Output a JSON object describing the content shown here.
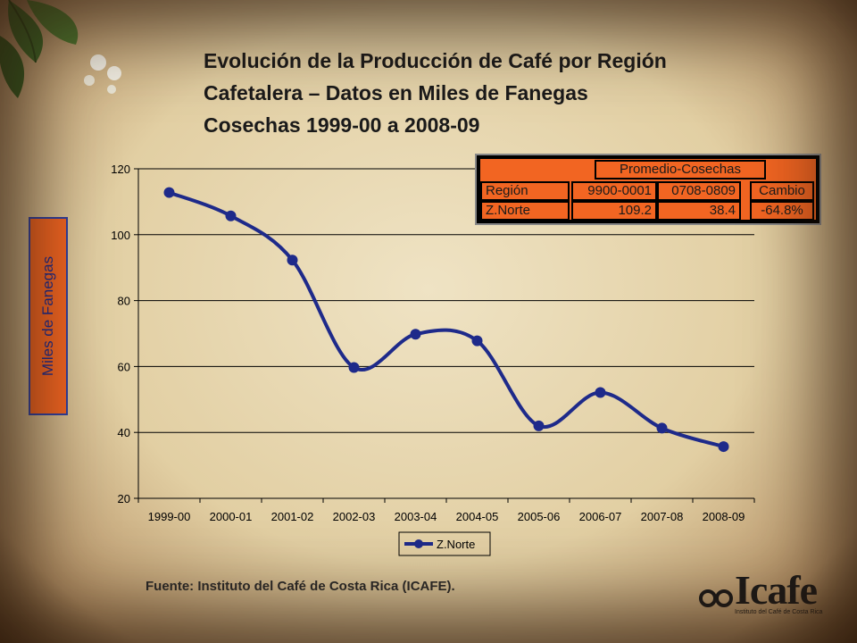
{
  "slide": {
    "title_lines": [
      "Evolución de la Producción de Café por Región",
      "Cafetalera – Datos en Miles de Fanegas",
      "Cosechas 1999-00 a 2008-09"
    ],
    "source": "Fuente: Instituto del Café de Costa Rica (ICAFE).",
    "logo": {
      "name": "Icafe",
      "subtitle": "Instituto del Café de Costa Rica"
    }
  },
  "summary_table": {
    "group_header": "Promedio-Cosechas",
    "headers": [
      "Región",
      "9900-0001",
      "0708-0809",
      "Cambio"
    ],
    "row": [
      "Z.Norte",
      "109.2",
      "38.4",
      "-64.8%"
    ]
  },
  "chart_data": {
    "type": "line",
    "ylabel": "Miles de Fanegas",
    "xlabel": "",
    "categories": [
      "1999-00",
      "2000-01",
      "2001-02",
      "2002-03",
      "2003-04",
      "2004-05",
      "2005-06",
      "2006-07",
      "2007-08",
      "2008-09"
    ],
    "series": [
      {
        "name": "Z.Norte",
        "values": [
          112.8,
          105.7,
          92.3,
          59.7,
          69.8,
          67.8,
          42.0,
          52.1,
          41.3,
          35.7
        ],
        "color": "#1e2a8a"
      }
    ],
    "ylim": [
      20,
      120
    ],
    "yticks": [
      20,
      40,
      60,
      80,
      100,
      120
    ],
    "grid": true,
    "legend": "bottom",
    "smooth": true
  }
}
